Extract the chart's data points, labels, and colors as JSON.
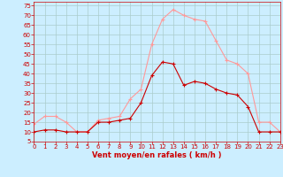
{
  "hours": [
    0,
    1,
    2,
    3,
    4,
    5,
    6,
    7,
    8,
    9,
    10,
    11,
    12,
    13,
    14,
    15,
    16,
    17,
    18,
    19,
    20,
    21,
    22,
    23
  ],
  "wind_avg": [
    10,
    11,
    11,
    10,
    10,
    10,
    15,
    15,
    16,
    17,
    25,
    39,
    46,
    45,
    34,
    36,
    35,
    32,
    30,
    29,
    23,
    10,
    10,
    10
  ],
  "wind_gust": [
    14,
    18,
    18,
    15,
    10,
    10,
    16,
    17,
    18,
    27,
    32,
    55,
    68,
    73,
    70,
    68,
    67,
    57,
    47,
    45,
    40,
    15,
    15,
    10
  ],
  "line_avg_color": "#cc0000",
  "line_gust_color": "#ff9999",
  "bg_color": "#cceeff",
  "grid_color": "#aacccc",
  "xlabel": "Vent moyen/en rafales ( km/h )",
  "xlabel_color": "#cc0000",
  "tick_color": "#cc0000",
  "ylim_min": 5,
  "ylim_max": 77,
  "yticks": [
    5,
    10,
    15,
    20,
    25,
    30,
    35,
    40,
    45,
    50,
    55,
    60,
    65,
    70,
    75
  ],
  "tick_fontsize": 5,
  "xlabel_fontsize": 6,
  "marker_size": 2.5,
  "linewidth": 0.8
}
